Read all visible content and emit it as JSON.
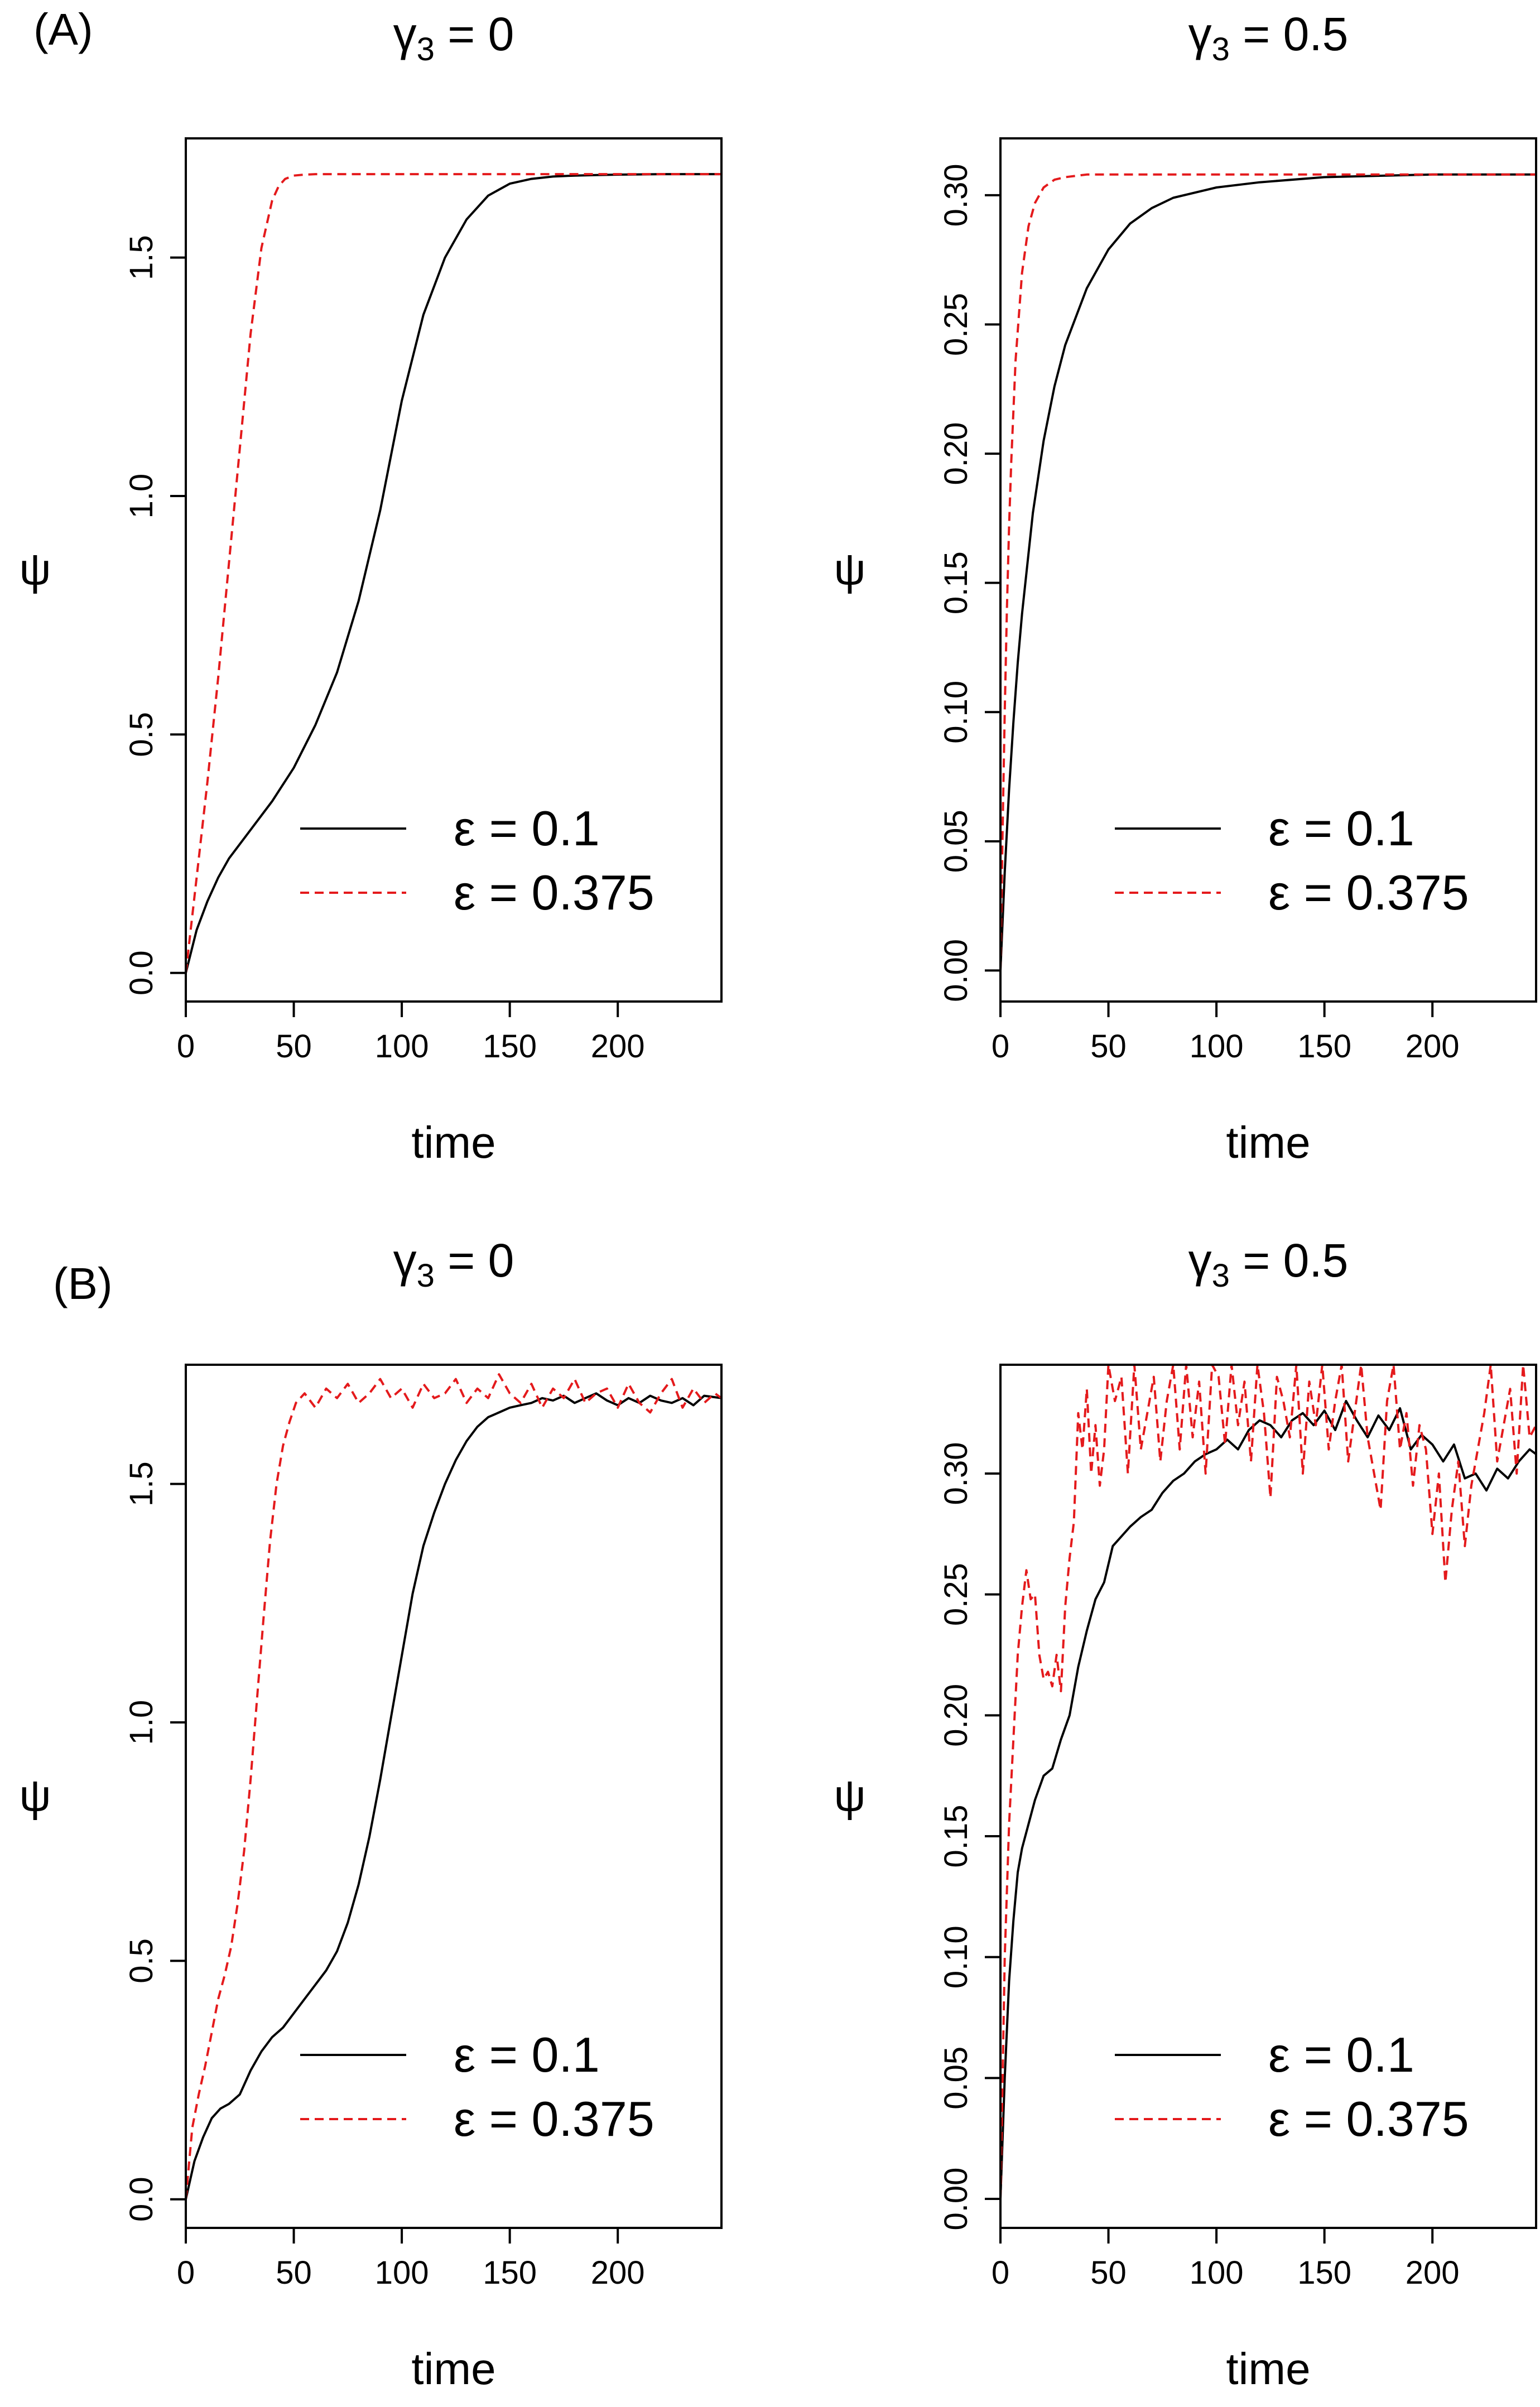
{
  "figure": {
    "panel_labels": [
      "(A)",
      "(B)"
    ]
  },
  "chart_data": [
    {
      "id": "A-left",
      "type": "line",
      "title_symbol": "γ",
      "title_subscript": "3",
      "title_rest": " = 0",
      "xlabel": "time",
      "ylabel": "ψ",
      "xlim": [
        0,
        248
      ],
      "ylim": [
        -0.06,
        1.75
      ],
      "xticks": [
        0,
        50,
        100,
        150,
        200
      ],
      "xtick_labels": [
        "0",
        "50",
        "100",
        "150",
        "200"
      ],
      "yticks": [
        0,
        0.5,
        1.0,
        1.5
      ],
      "ytick_labels": [
        "0.0",
        "0.5",
        "1.0",
        "1.5"
      ],
      "legend": {
        "position": "bottom-right",
        "entries": [
          "ε = 0.1",
          "ε = 0.375"
        ]
      },
      "series": [
        {
          "name": "ε = 0.1",
          "color": "#000000",
          "dash": "solid",
          "x": [
            0,
            5,
            10,
            15,
            20,
            30,
            40,
            50,
            60,
            70,
            80,
            90,
            100,
            110,
            120,
            130,
            140,
            150,
            160,
            170,
            180,
            190,
            200,
            220,
            248
          ],
          "y": [
            0,
            0.09,
            0.15,
            0.2,
            0.24,
            0.3,
            0.36,
            0.43,
            0.52,
            0.63,
            0.78,
            0.97,
            1.2,
            1.38,
            1.5,
            1.58,
            1.63,
            1.655,
            1.665,
            1.67,
            1.672,
            1.673,
            1.674,
            1.675,
            1.675
          ]
        },
        {
          "name": "ε = 0.375",
          "color": "#e41a1c",
          "dash": "dashed",
          "x": [
            0,
            5,
            10,
            15,
            20,
            25,
            30,
            35,
            40,
            43,
            46,
            50,
            55,
            60,
            70,
            100,
            150,
            200,
            248
          ],
          "y": [
            0,
            0.2,
            0.4,
            0.62,
            0.86,
            1.1,
            1.34,
            1.52,
            1.62,
            1.65,
            1.665,
            1.672,
            1.674,
            1.675,
            1.675,
            1.675,
            1.675,
            1.675,
            1.675
          ]
        }
      ]
    },
    {
      "id": "A-right",
      "type": "line",
      "title_symbol": "γ",
      "title_subscript": "3",
      "title_rest": " = 0.5",
      "xlabel": "time",
      "ylabel": "ψ",
      "xlim": [
        0,
        248
      ],
      "ylim": [
        -0.012,
        0.322
      ],
      "xticks": [
        0,
        50,
        100,
        150,
        200
      ],
      "xtick_labels": [
        "0",
        "50",
        "100",
        "150",
        "200"
      ],
      "yticks": [
        0,
        0.05,
        0.1,
        0.15,
        0.2,
        0.25,
        0.3
      ],
      "ytick_labels": [
        "0.00",
        "0.05",
        "0.10",
        "0.15",
        "0.20",
        "0.25",
        "0.30"
      ],
      "legend": {
        "position": "bottom-right",
        "entries": [
          "ε = 0.1",
          "ε = 0.375"
        ]
      },
      "series": [
        {
          "name": "ε = 0.1",
          "color": "#000000",
          "dash": "solid",
          "x": [
            0,
            2,
            4,
            6,
            8,
            10,
            15,
            20,
            25,
            30,
            40,
            50,
            60,
            70,
            80,
            100,
            120,
            150,
            200,
            248
          ],
          "y": [
            0,
            0.038,
            0.07,
            0.096,
            0.119,
            0.138,
            0.177,
            0.205,
            0.226,
            0.242,
            0.264,
            0.279,
            0.289,
            0.295,
            0.299,
            0.303,
            0.305,
            0.307,
            0.308,
            0.308
          ]
        },
        {
          "name": "ε = 0.375",
          "color": "#e41a1c",
          "dash": "dashed",
          "x": [
            0,
            1,
            2,
            3,
            4,
            5,
            7,
            10,
            13,
            16,
            20,
            25,
            30,
            40,
            50,
            100,
            150,
            200,
            248
          ],
          "y": [
            0,
            0.055,
            0.1,
            0.14,
            0.172,
            0.197,
            0.236,
            0.27,
            0.288,
            0.297,
            0.303,
            0.306,
            0.307,
            0.308,
            0.308,
            0.308,
            0.308,
            0.308,
            0.308
          ]
        }
      ]
    },
    {
      "id": "B-left",
      "type": "line",
      "title_symbol": "γ",
      "title_subscript": "3",
      "title_rest": " = 0",
      "xlabel": "time",
      "ylabel": "ψ",
      "xlim": [
        0,
        248
      ],
      "ylim": [
        -0.06,
        1.75
      ],
      "xticks": [
        0,
        50,
        100,
        150,
        200
      ],
      "xtick_labels": [
        "0",
        "50",
        "100",
        "150",
        "200"
      ],
      "yticks": [
        0,
        0.5,
        1.0,
        1.5
      ],
      "ytick_labels": [
        "0.0",
        "0.5",
        "1.0",
        "1.5"
      ],
      "legend": {
        "position": "bottom-right",
        "entries": [
          "ε = 0.1",
          "ε = 0.375"
        ]
      },
      "series": [
        {
          "name": "ε = 0.1",
          "color": "#000000",
          "dash": "solid",
          "x": [
            0,
            4,
            8,
            12,
            16,
            20,
            25,
            30,
            35,
            40,
            45,
            50,
            55,
            60,
            65,
            70,
            75,
            80,
            85,
            90,
            95,
            100,
            105,
            110,
            115,
            120,
            125,
            130,
            135,
            140,
            145,
            150,
            155,
            160,
            165,
            170,
            175,
            180,
            185,
            190,
            195,
            200,
            205,
            210,
            215,
            220,
            225,
            230,
            235,
            240,
            248
          ],
          "y": [
            0,
            0.08,
            0.13,
            0.17,
            0.19,
            0.2,
            0.22,
            0.27,
            0.31,
            0.34,
            0.36,
            0.39,
            0.42,
            0.45,
            0.48,
            0.52,
            0.58,
            0.66,
            0.76,
            0.88,
            1.01,
            1.14,
            1.27,
            1.37,
            1.44,
            1.5,
            1.55,
            1.59,
            1.62,
            1.64,
            1.65,
            1.66,
            1.665,
            1.67,
            1.68,
            1.675,
            1.685,
            1.67,
            1.68,
            1.69,
            1.675,
            1.665,
            1.68,
            1.67,
            1.685,
            1.675,
            1.67,
            1.68,
            1.665,
            1.685,
            1.68
          ]
        },
        {
          "name": "ε = 0.375",
          "color": "#e41a1c",
          "dash": "dashed",
          "x": [
            0,
            3,
            6,
            9,
            12,
            15,
            18,
            21,
            24,
            27,
            30,
            33,
            36,
            39,
            42,
            45,
            48,
            51,
            55,
            60,
            65,
            70,
            75,
            80,
            85,
            90,
            95,
            100,
            105,
            110,
            115,
            120,
            125,
            130,
            135,
            140,
            145,
            150,
            155,
            160,
            165,
            170,
            175,
            180,
            185,
            190,
            195,
            200,
            205,
            210,
            215,
            220,
            225,
            230,
            235,
            240,
            245,
            248
          ],
          "y": [
            0,
            0.15,
            0.22,
            0.28,
            0.35,
            0.42,
            0.47,
            0.53,
            0.62,
            0.73,
            0.88,
            1.05,
            1.22,
            1.38,
            1.5,
            1.58,
            1.63,
            1.67,
            1.69,
            1.66,
            1.7,
            1.68,
            1.71,
            1.67,
            1.69,
            1.72,
            1.68,
            1.7,
            1.66,
            1.71,
            1.68,
            1.69,
            1.72,
            1.67,
            1.7,
            1.68,
            1.73,
            1.69,
            1.67,
            1.71,
            1.66,
            1.7,
            1.68,
            1.72,
            1.67,
            1.69,
            1.7,
            1.66,
            1.71,
            1.67,
            1.65,
            1.69,
            1.72,
            1.66,
            1.7,
            1.67,
            1.69,
            1.68
          ]
        }
      ]
    },
    {
      "id": "B-right",
      "type": "line",
      "title_symbol": "γ",
      "title_subscript": "3",
      "title_rest": " = 0.5",
      "xlabel": "time",
      "ylabel": "ψ",
      "xlim": [
        0,
        248
      ],
      "ylim": [
        -0.012,
        0.345
      ],
      "xticks": [
        0,
        50,
        100,
        150,
        200
      ],
      "xtick_labels": [
        "0",
        "50",
        "100",
        "150",
        "200"
      ],
      "yticks": [
        0,
        0.05,
        0.1,
        0.15,
        0.2,
        0.25,
        0.3
      ],
      "ytick_labels": [
        "0.00",
        "0.05",
        "0.10",
        "0.15",
        "0.20",
        "0.25",
        "0.30"
      ],
      "legend": {
        "position": "bottom-right",
        "entries": [
          "ε = 0.1",
          "ε = 0.375"
        ]
      },
      "series": [
        {
          "name": "ε = 0.1",
          "color": "#000000",
          "dash": "solid",
          "x": [
            0,
            2,
            4,
            6,
            8,
            10,
            13,
            16,
            20,
            24,
            28,
            32,
            36,
            40,
            44,
            48,
            52,
            56,
            60,
            65,
            70,
            75,
            80,
            85,
            90,
            95,
            100,
            105,
            110,
            115,
            120,
            125,
            130,
            135,
            140,
            145,
            150,
            155,
            160,
            165,
            170,
            175,
            180,
            185,
            190,
            195,
            200,
            205,
            210,
            215,
            220,
            225,
            230,
            235,
            240,
            245,
            248
          ],
          "y": [
            0,
            0.05,
            0.09,
            0.115,
            0.135,
            0.145,
            0.155,
            0.165,
            0.175,
            0.178,
            0.19,
            0.2,
            0.22,
            0.235,
            0.248,
            0.255,
            0.27,
            0.274,
            0.278,
            0.282,
            0.285,
            0.292,
            0.297,
            0.3,
            0.305,
            0.308,
            0.31,
            0.314,
            0.31,
            0.318,
            0.322,
            0.32,
            0.315,
            0.322,
            0.325,
            0.32,
            0.326,
            0.318,
            0.33,
            0.322,
            0.315,
            0.324,
            0.318,
            0.327,
            0.31,
            0.316,
            0.312,
            0.305,
            0.312,
            0.298,
            0.3,
            0.293,
            0.302,
            0.298,
            0.305,
            0.31,
            0.308
          ]
        },
        {
          "name": "ε = 0.375",
          "color": "#e41a1c",
          "dash": "dashed",
          "x": [
            0,
            2,
            4,
            6,
            8,
            10,
            12,
            14,
            16,
            18,
            20,
            22,
            24,
            26,
            28,
            30,
            32,
            34,
            36,
            38,
            40,
            42,
            44,
            46,
            48,
            50,
            53,
            56,
            59,
            62,
            65,
            68,
            71,
            74,
            77,
            80,
            83,
            86,
            89,
            92,
            95,
            98,
            101,
            104,
            107,
            110,
            113,
            116,
            119,
            122,
            125,
            128,
            131,
            134,
            137,
            140,
            143,
            146,
            149,
            152,
            155,
            158,
            161,
            164,
            167,
            170,
            173,
            176,
            179,
            182,
            185,
            188,
            191,
            194,
            197,
            200,
            203,
            206,
            209,
            212,
            215,
            218,
            221,
            224,
            227,
            230,
            233,
            236,
            239,
            242,
            245,
            248
          ],
          "y": [
            0,
            0.1,
            0.155,
            0.19,
            0.225,
            0.245,
            0.26,
            0.248,
            0.25,
            0.225,
            0.215,
            0.218,
            0.212,
            0.225,
            0.21,
            0.245,
            0.265,
            0.28,
            0.325,
            0.31,
            0.335,
            0.3,
            0.32,
            0.295,
            0.31,
            0.345,
            0.33,
            0.34,
            0.3,
            0.345,
            0.31,
            0.325,
            0.34,
            0.305,
            0.33,
            0.345,
            0.31,
            0.345,
            0.315,
            0.338,
            0.3,
            0.345,
            0.34,
            0.312,
            0.345,
            0.32,
            0.338,
            0.305,
            0.345,
            0.325,
            0.29,
            0.34,
            0.33,
            0.315,
            0.345,
            0.3,
            0.338,
            0.32,
            0.345,
            0.31,
            0.33,
            0.345,
            0.305,
            0.325,
            0.345,
            0.315,
            0.3,
            0.285,
            0.33,
            0.345,
            0.31,
            0.325,
            0.295,
            0.32,
            0.31,
            0.275,
            0.3,
            0.255,
            0.285,
            0.305,
            0.27,
            0.295,
            0.31,
            0.325,
            0.345,
            0.305,
            0.32,
            0.335,
            0.3,
            0.345,
            0.315,
            0.32
          ]
        }
      ]
    }
  ]
}
